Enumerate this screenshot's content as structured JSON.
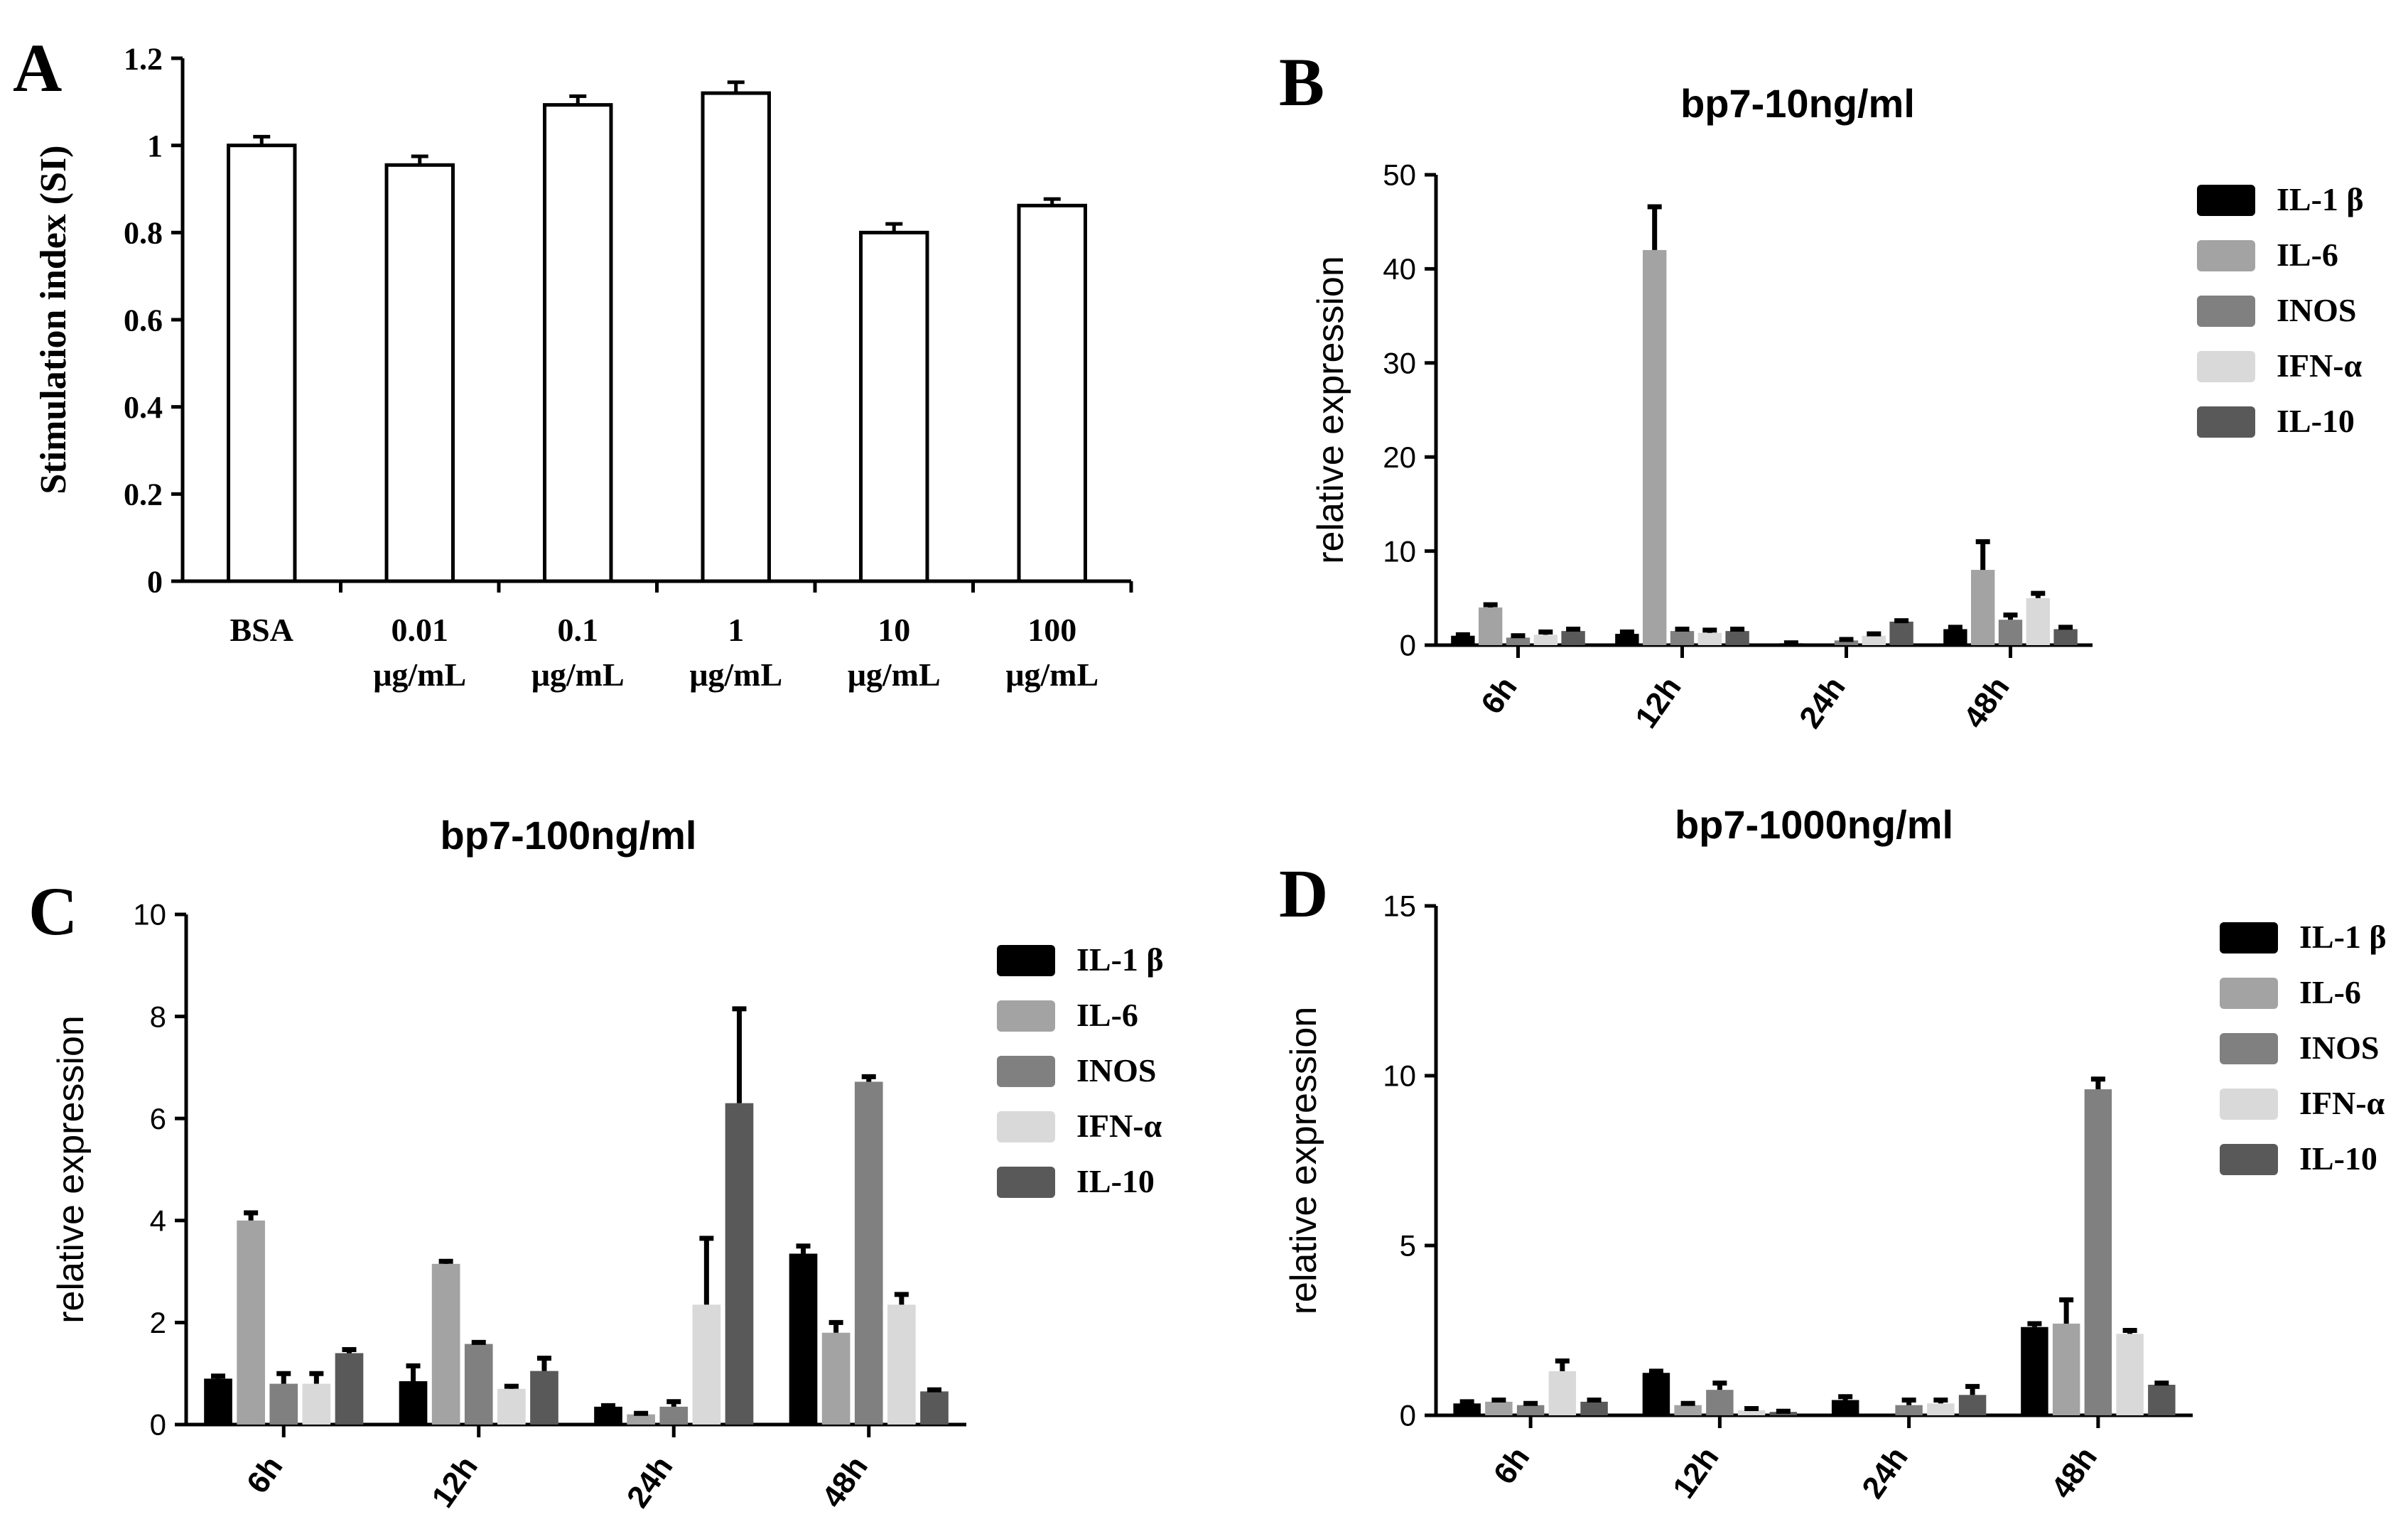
{
  "panels": [
    {
      "letter": "A",
      "chart_data": {
        "type": "bar",
        "title": "",
        "xlabel": "",
        "ylabel": "Stimulation index (SI)",
        "categories": [
          [
            "BSA"
          ],
          [
            "0.01",
            "μg/mL"
          ],
          [
            "0.1",
            "μg/mL"
          ],
          [
            "1",
            "μg/mL"
          ],
          [
            "10",
            "μg/mL"
          ],
          [
            "100",
            "μg/mL"
          ]
        ],
        "values": [
          1.0,
          0.955,
          1.093,
          1.12,
          0.8,
          0.862
        ],
        "errors": [
          0.02,
          0.02,
          0.02,
          0.025,
          0.02,
          0.015
        ],
        "ylim": [
          0,
          1.2
        ],
        "yticks": [
          "0",
          "0.2",
          "0.4",
          "0.6",
          "0.8",
          "1",
          "1.2"
        ],
        "grid": false,
        "bar_fill": "#ffffff",
        "bar_stroke": "#000000"
      }
    },
    {
      "letter": "B",
      "chart_data": {
        "type": "bar",
        "title": "bp7-10ng/ml",
        "xlabel": "",
        "ylabel": "relative expression",
        "categories": [
          "6h",
          "12h",
          "24h",
          "48h"
        ],
        "ylim": [
          0,
          50
        ],
        "yticks": [
          "0",
          "10",
          "20",
          "30",
          "40",
          "50"
        ],
        "grid": false,
        "legend_position": "right",
        "series": [
          {
            "name": "IL-1 β",
            "color": "#000000",
            "values": [
              1.0,
              1.2,
              0.2,
              1.7
            ],
            "errors": [
              0.1,
              0.2,
              0.05,
              0.2
            ]
          },
          {
            "name": "IL-6",
            "color": "#a3a3a3",
            "values": [
              4.0,
              42.0,
              0.0,
              8.0
            ],
            "errors": [
              0.3,
              4.6,
              0.0,
              3.0
            ]
          },
          {
            "name": "INOS",
            "color": "#808080",
            "values": [
              0.8,
              1.5,
              0.5,
              2.7
            ],
            "errors": [
              0.2,
              0.2,
              0.1,
              0.5
            ]
          },
          {
            "name": "IFN-α",
            "color": "#d9d9d9",
            "values": [
              1.1,
              1.3,
              1.0,
              5.0
            ],
            "errors": [
              0.3,
              0.3,
              0.2,
              0.5
            ]
          },
          {
            "name": "IL-10",
            "color": "#595959",
            "values": [
              1.5,
              1.5,
              2.5,
              1.7
            ],
            "errors": [
              0.2,
              0.2,
              0.1,
              0.2
            ]
          }
        ]
      }
    },
    {
      "letter": "C",
      "chart_data": {
        "type": "bar",
        "title": "bp7-100ng/ml",
        "xlabel": "",
        "ylabel": "relative expression",
        "categories": [
          "6h",
          "12h",
          "24h",
          "48h"
        ],
        "ylim": [
          0,
          10
        ],
        "yticks": [
          "0",
          "2",
          "4",
          "6",
          "8",
          "10"
        ],
        "grid": false,
        "legend_position": "right",
        "series": [
          {
            "name": "IL-1 β",
            "color": "#000000",
            "values": [
              0.9,
              0.85,
              0.35,
              3.35
            ],
            "errors": [
              0.05,
              0.3,
              0.02,
              0.15
            ]
          },
          {
            "name": "IL-6",
            "color": "#a3a3a3",
            "values": [
              4.0,
              3.15,
              0.2,
              1.8
            ],
            "errors": [
              0.15,
              0.05,
              0.02,
              0.2
            ]
          },
          {
            "name": "INOS",
            "color": "#808080",
            "values": [
              0.8,
              1.58,
              0.35,
              6.72
            ],
            "errors": [
              0.2,
              0.03,
              0.1,
              0.1
            ]
          },
          {
            "name": "IFN-α",
            "color": "#d9d9d9",
            "values": [
              0.8,
              0.7,
              2.35,
              2.35
            ],
            "errors": [
              0.2,
              0.05,
              1.3,
              0.2
            ]
          },
          {
            "name": "IL-10",
            "color": "#595959",
            "values": [
              1.4,
              1.05,
              6.3,
              0.65
            ],
            "errors": [
              0.07,
              0.25,
              1.85,
              0.03
            ]
          }
        ]
      }
    },
    {
      "letter": "D",
      "chart_data": {
        "type": "bar",
        "title": "bp7-1000ng/ml",
        "xlabel": "",
        "ylabel": "relative expression",
        "categories": [
          "6h",
          "12h",
          "24h",
          "48h"
        ],
        "ylim": [
          0,
          15
        ],
        "yticks": [
          "0",
          "5",
          "10",
          "15"
        ],
        "grid": false,
        "legend_position": "right",
        "series": [
          {
            "name": "IL-1 β",
            "color": "#000000",
            "values": [
              0.35,
              1.25,
              0.45,
              2.6
            ],
            "errors": [
              0.05,
              0.05,
              0.1,
              0.1
            ]
          },
          {
            "name": "IL-6",
            "color": "#a3a3a3",
            "values": [
              0.4,
              0.3,
              0.0,
              2.7
            ],
            "errors": [
              0.05,
              0.05,
              0.0,
              0.7
            ]
          },
          {
            "name": "INOS",
            "color": "#808080",
            "values": [
              0.3,
              0.75,
              0.3,
              9.6
            ],
            "errors": [
              0.05,
              0.2,
              0.15,
              0.3
            ]
          },
          {
            "name": "IFN-α",
            "color": "#d9d9d9",
            "values": [
              1.3,
              0.15,
              0.35,
              2.4
            ],
            "errors": [
              0.3,
              0.05,
              0.1,
              0.1
            ]
          },
          {
            "name": "IL-10",
            "color": "#595959",
            "values": [
              0.4,
              0.1,
              0.6,
              0.9
            ],
            "errors": [
              0.05,
              0.02,
              0.25,
              0.05
            ]
          }
        ]
      }
    }
  ]
}
